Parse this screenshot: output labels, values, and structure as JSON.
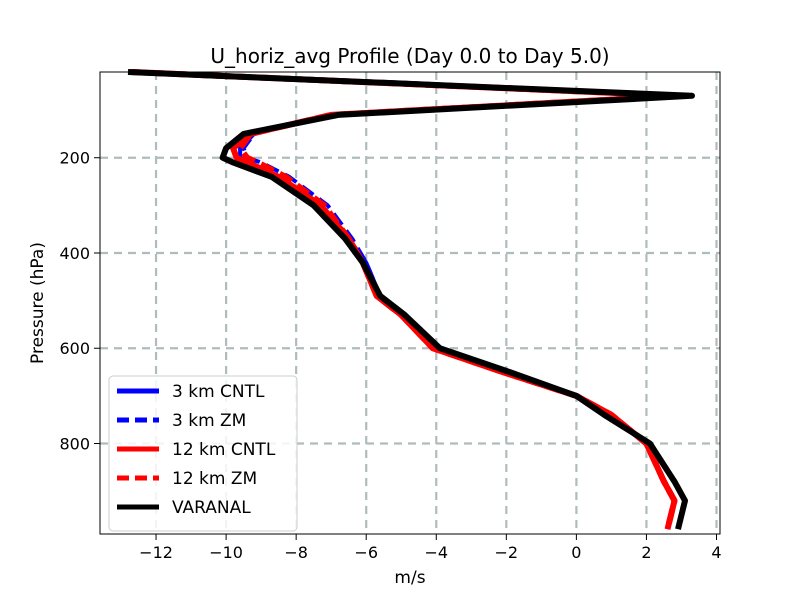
{
  "chart_data": {
    "type": "line",
    "title": "U_horiz_avg Profile (Day 0.0 to Day 5.0)",
    "xlabel": "m/s",
    "ylabel": "Pressure (hPa)",
    "xlim": [
      -13.6,
      4.1
    ],
    "ylim": [
      990,
      20
    ],
    "y_inverted": true,
    "grid": true,
    "legend_position": "lower-left",
    "xticks": [
      -12,
      -10,
      -8,
      -6,
      -4,
      -2,
      0,
      2,
      4
    ],
    "xtick_labels": [
      "−12",
      "−10",
      "−8",
      "−6",
      "−4",
      "−2",
      "0",
      "2",
      "4"
    ],
    "yticks": [
      200,
      400,
      600,
      800
    ],
    "ytick_labels": [
      "200",
      "400",
      "600",
      "800"
    ],
    "series": [
      {
        "name": "3 km CNTL",
        "color": "#0000ff",
        "dash": "solid",
        "x": [
          -12.7,
          3.0,
          -7.0,
          -9.2,
          -9.6,
          -9.6,
          -9.3,
          -8.5,
          -7.3,
          -6.5,
          -6.0,
          -5.6,
          -5.0,
          -4.0,
          -2.0,
          0.0,
          1.0,
          2.0,
          2.5,
          2.8,
          2.6
        ],
        "p": [
          20,
          70,
          110,
          150,
          180,
          200,
          210,
          240,
          300,
          370,
          420,
          490,
          530,
          600,
          650,
          700,
          740,
          800,
          880,
          920,
          980
        ]
      },
      {
        "name": "3 km ZM",
        "color": "#0000ff",
        "dash": "dashed",
        "x": [
          -12.7,
          3.0,
          -7.0,
          -9.2,
          -9.5,
          -9.4,
          -9.0,
          -8.2,
          -7.1,
          -6.4,
          -6.0,
          -5.6,
          -5.0,
          -4.0,
          -2.0,
          0.0,
          1.0,
          2.0,
          2.5,
          2.8,
          2.6
        ],
        "p": [
          20,
          70,
          110,
          150,
          180,
          200,
          210,
          240,
          300,
          370,
          420,
          490,
          530,
          600,
          650,
          700,
          740,
          800,
          880,
          920,
          980
        ]
      },
      {
        "name": "12 km CNTL",
        "color": "#ff0000",
        "dash": "solid",
        "x": [
          -12.7,
          3.0,
          -7.0,
          -9.3,
          -9.8,
          -9.7,
          -9.4,
          -8.5,
          -7.3,
          -6.5,
          -6.1,
          -5.7,
          -5.0,
          -4.1,
          -2.1,
          0.0,
          1.0,
          2.0,
          2.5,
          2.8,
          2.6
        ],
        "p": [
          20,
          70,
          110,
          150,
          180,
          200,
          210,
          240,
          300,
          370,
          420,
          490,
          530,
          600,
          650,
          700,
          740,
          800,
          880,
          920,
          980
        ]
      },
      {
        "name": "12 km ZM",
        "color": "#ff0000",
        "dash": "dashed",
        "x": [
          -12.7,
          3.0,
          -7.0,
          -9.3,
          -9.6,
          -9.4,
          -9.1,
          -8.3,
          -7.2,
          -6.5,
          -6.1,
          -5.7,
          -5.0,
          -4.1,
          -2.1,
          0.0,
          1.0,
          2.0,
          2.5,
          2.8,
          2.6
        ],
        "p": [
          20,
          70,
          110,
          150,
          180,
          200,
          210,
          240,
          300,
          370,
          420,
          490,
          530,
          600,
          650,
          700,
          740,
          800,
          880,
          920,
          980
        ]
      },
      {
        "name": "VARANAL",
        "color": "#000000",
        "dash": "solid",
        "x": [
          -12.8,
          3.3,
          -6.8,
          -9.5,
          -10.0,
          -10.1,
          -9.8,
          -8.7,
          -7.5,
          -6.6,
          -6.1,
          -5.6,
          -4.9,
          -3.9,
          -1.9,
          0.0,
          0.8,
          2.1,
          2.8,
          3.1,
          2.9
        ],
        "p": [
          20,
          70,
          110,
          150,
          180,
          200,
          210,
          240,
          300,
          370,
          420,
          490,
          530,
          600,
          650,
          700,
          740,
          800,
          880,
          920,
          980
        ]
      }
    ]
  }
}
